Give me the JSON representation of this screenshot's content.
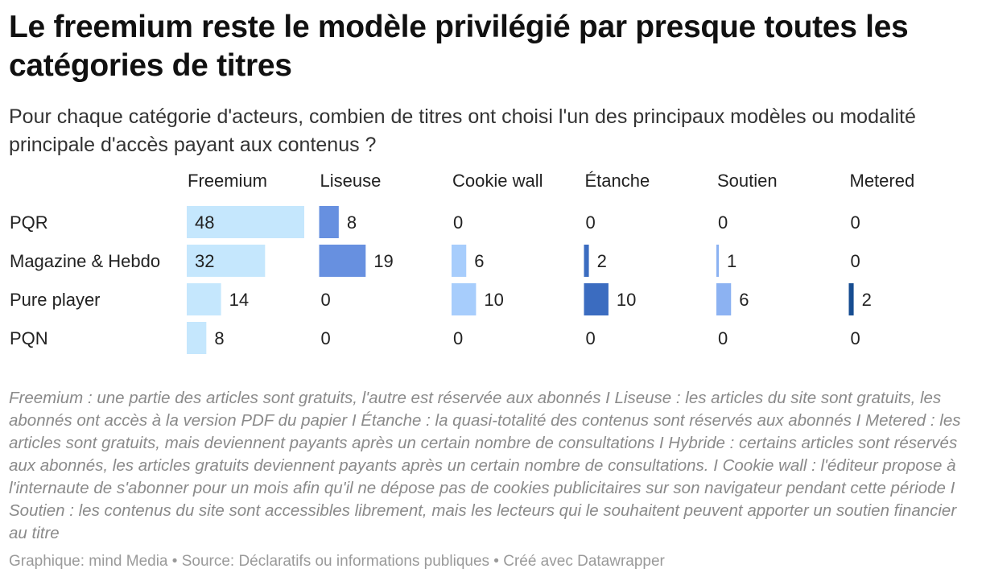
{
  "title": "Le freemium reste le modèle privilégié par presque toutes les catégories de titres",
  "subtitle": "Pour chaque catégorie d'acteurs, combien de titres ont choisi l'un des principaux modèles ou modalité principale d'accès payant aux contenus ?",
  "notes": "Freemium : une partie des articles sont gratuits, l'autre est réservée aux abonnés I Liseuse : les articles du site sont gratuits, les abonnés ont accès à la version PDF du papier I Étanche : la quasi-totalité des contenus sont réservés aux abonnés I Metered : les articles sont gratuits, mais deviennent payants après un certain nombre de consultations I Hybride : certains articles sont réservés aux abonnés, les articles gratuits deviennent payants après un certain nombre de consultations. I Cookie wall : l'éditeur propose à l'internaute de s'abonner pour un mois afin qu'il ne dépose pas de cookies publicitaires sur son navigateur pendant cette période I Soutien : les contenus du site sont accessibles librement, mais les lecteurs qui le souhaitent peuvent apporter un soutien financier au titre",
  "footer": "Graphique: mind Media • Source: Déclaratifs ou informations publiques • Créé avec Datawrapper",
  "chart_data": {
    "type": "bar",
    "layout": "small-multiples-table",
    "categories": [
      "PQR",
      "Magazine & Hebdo",
      "Pure player",
      "PQN"
    ],
    "series": [
      {
        "name": "Freemium",
        "color": "#c5e7fd",
        "values": [
          48,
          32,
          14,
          8
        ]
      },
      {
        "name": "Liseuse",
        "color": "#6790e0",
        "values": [
          8,
          19,
          0,
          0
        ]
      },
      {
        "name": "Cookie wall",
        "color": "#a7cdfc",
        "values": [
          0,
          6,
          10,
          0
        ]
      },
      {
        "name": "Étanche",
        "color": "#3b6cc0",
        "values": [
          0,
          2,
          10,
          0
        ]
      },
      {
        "name": "Soutien",
        "color": "#8cb2f2",
        "values": [
          0,
          1,
          6,
          0
        ]
      },
      {
        "name": "Metered",
        "color": "#174d91",
        "values": [
          0,
          0,
          2,
          0
        ]
      }
    ],
    "xlim": [
      0,
      48
    ]
  }
}
